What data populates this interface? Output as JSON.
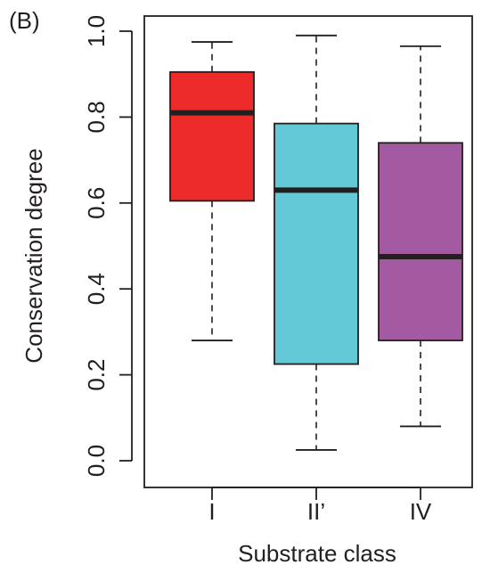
{
  "panel_label": "(B)",
  "chart_data": {
    "type": "box",
    "xlabel": "Substrate class",
    "ylabel": "Conservation degree",
    "ylim": [
      0.0,
      1.0
    ],
    "yticks": [
      "0.0",
      "0.2",
      "0.4",
      "0.6",
      "0.8",
      "1.0"
    ],
    "ytick_values": [
      0.0,
      0.2,
      0.4,
      0.6,
      0.8,
      1.0
    ],
    "grid": false,
    "categories": [
      "I",
      "II’",
      "IV"
    ],
    "boxes": [
      {
        "category": "I",
        "color": "#ee2b2b",
        "whisker_low": 0.28,
        "q1": 0.605,
        "median": 0.81,
        "q3": 0.905,
        "whisker_high": 0.975
      },
      {
        "category": "II’",
        "color": "#63c9d6",
        "whisker_low": 0.025,
        "q1": 0.225,
        "median": 0.63,
        "q3": 0.785,
        "whisker_high": 0.99
      },
      {
        "category": "IV",
        "color": "#a35aa1",
        "whisker_low": 0.08,
        "q1": 0.28,
        "median": 0.475,
        "q3": 0.74,
        "whisker_high": 0.965
      }
    ]
  }
}
